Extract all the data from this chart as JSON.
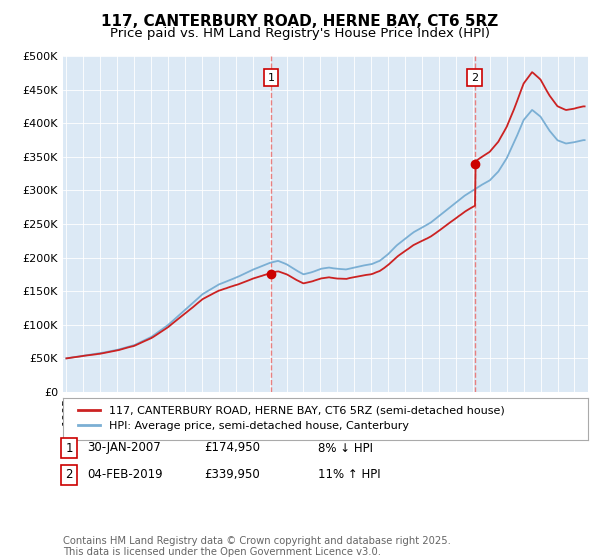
{
  "title": "117, CANTERBURY ROAD, HERNE BAY, CT6 5RZ",
  "subtitle": "Price paid vs. HM Land Registry's House Price Index (HPI)",
  "ylim": [
    0,
    500000
  ],
  "yticks": [
    0,
    50000,
    100000,
    150000,
    200000,
    250000,
    300000,
    350000,
    400000,
    450000,
    500000
  ],
  "ytick_labels": [
    "£0",
    "£50K",
    "£100K",
    "£150K",
    "£200K",
    "£250K",
    "£300K",
    "£350K",
    "£400K",
    "£450K",
    "£500K"
  ],
  "xlim_left": 1994.8,
  "xlim_right": 2025.8,
  "sale1_year": 2007.08,
  "sale1_price": 174950,
  "sale2_year": 2019.12,
  "sale2_price": 339950,
  "vline_color": "#e88080",
  "vline_style": "--",
  "sale_marker_color": "#cc0000",
  "hpi_line_color": "#7bafd4",
  "price_line_color": "#cc2222",
  "legend_label_price": "117, CANTERBURY ROAD, HERNE BAY, CT6 5RZ (semi-detached house)",
  "legend_label_hpi": "HPI: Average price, semi-detached house, Canterbury",
  "annotation1": [
    "1",
    "30-JAN-2007",
    "£174,950",
    "8% ↓ HPI"
  ],
  "annotation2": [
    "2",
    "04-FEB-2019",
    "£339,950",
    "11% ↑ HPI"
  ],
  "footer": "Contains HM Land Registry data © Crown copyright and database right 2025.\nThis data is licensed under the Open Government Licence v3.0.",
  "background_color": "#ffffff",
  "plot_bg_color": "#dce9f5",
  "grid_color": "#ffffff",
  "title_fontsize": 11,
  "subtitle_fontsize": 9.5,
  "tick_fontsize": 8,
  "legend_fontsize": 8,
  "annotation_fontsize": 8.5
}
